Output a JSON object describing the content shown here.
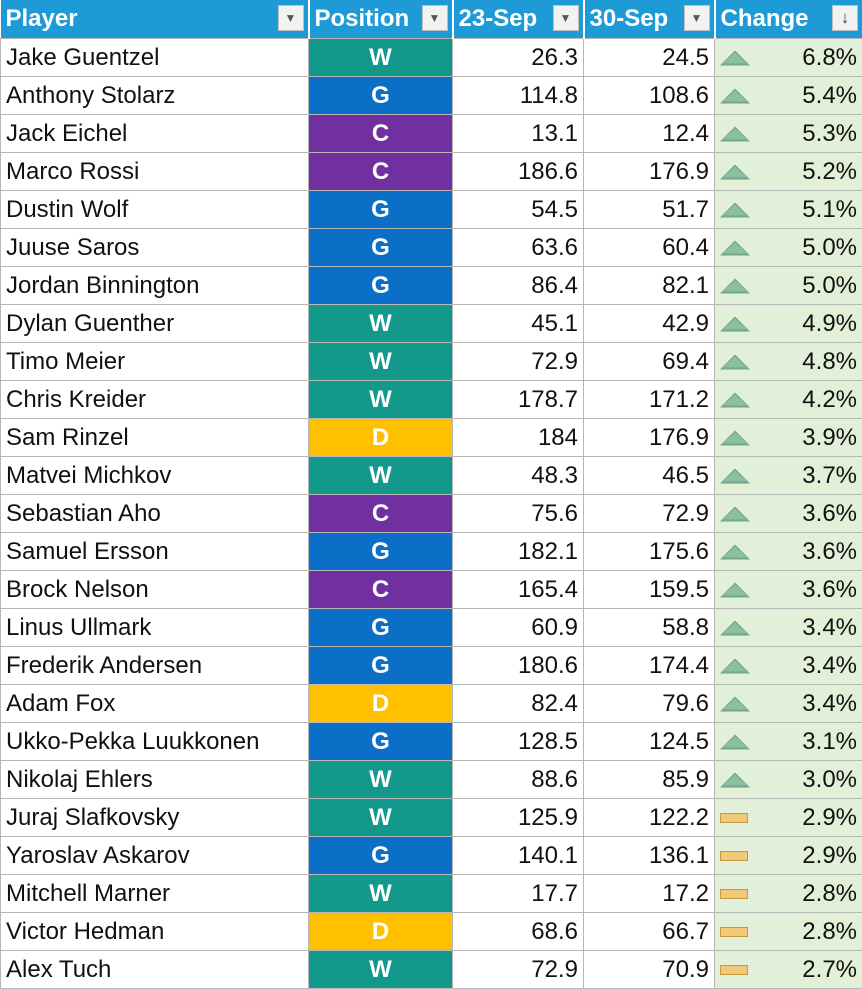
{
  "columns": [
    {
      "label": "Player",
      "sorted": false
    },
    {
      "label": "Position",
      "sorted": false
    },
    {
      "label": "23-Sep",
      "sorted": false
    },
    {
      "label": "30-Sep",
      "sorted": false
    },
    {
      "label": "Change",
      "sorted": true
    }
  ],
  "position_colors": {
    "W": "#13998c",
    "G": "#0c6fc7",
    "C": "#7030a0",
    "D": "#ffc000"
  },
  "rows": [
    {
      "player": "Jake Guentzel",
      "position": "W",
      "sep23": "26.3",
      "sep30": "24.5",
      "change": "6.8%",
      "indicator": "up"
    },
    {
      "player": "Anthony Stolarz",
      "position": "G",
      "sep23": "114.8",
      "sep30": "108.6",
      "change": "5.4%",
      "indicator": "up"
    },
    {
      "player": "Jack Eichel",
      "position": "C",
      "sep23": "13.1",
      "sep30": "12.4",
      "change": "5.3%",
      "indicator": "up"
    },
    {
      "player": "Marco Rossi",
      "position": "C",
      "sep23": "186.6",
      "sep30": "176.9",
      "change": "5.2%",
      "indicator": "up"
    },
    {
      "player": "Dustin Wolf",
      "position": "G",
      "sep23": "54.5",
      "sep30": "51.7",
      "change": "5.1%",
      "indicator": "up"
    },
    {
      "player": "Juuse Saros",
      "position": "G",
      "sep23": "63.6",
      "sep30": "60.4",
      "change": "5.0%",
      "indicator": "up"
    },
    {
      "player": "Jordan Binnington",
      "position": "G",
      "sep23": "86.4",
      "sep30": "82.1",
      "change": "5.0%",
      "indicator": "up"
    },
    {
      "player": "Dylan Guenther",
      "position": "W",
      "sep23": "45.1",
      "sep30": "42.9",
      "change": "4.9%",
      "indicator": "up"
    },
    {
      "player": "Timo Meier",
      "position": "W",
      "sep23": "72.9",
      "sep30": "69.4",
      "change": "4.8%",
      "indicator": "up"
    },
    {
      "player": "Chris Kreider",
      "position": "W",
      "sep23": "178.7",
      "sep30": "171.2",
      "change": "4.2%",
      "indicator": "up"
    },
    {
      "player": "Sam Rinzel",
      "position": "D",
      "sep23": "184",
      "sep30": "176.9",
      "change": "3.9%",
      "indicator": "up"
    },
    {
      "player": "Matvei Michkov",
      "position": "W",
      "sep23": "48.3",
      "sep30": "46.5",
      "change": "3.7%",
      "indicator": "up"
    },
    {
      "player": "Sebastian Aho",
      "position": "C",
      "sep23": "75.6",
      "sep30": "72.9",
      "change": "3.6%",
      "indicator": "up"
    },
    {
      "player": "Samuel Ersson",
      "position": "G",
      "sep23": "182.1",
      "sep30": "175.6",
      "change": "3.6%",
      "indicator": "up"
    },
    {
      "player": "Brock Nelson",
      "position": "C",
      "sep23": "165.4",
      "sep30": "159.5",
      "change": "3.6%",
      "indicator": "up"
    },
    {
      "player": "Linus Ullmark",
      "position": "G",
      "sep23": "60.9",
      "sep30": "58.8",
      "change": "3.4%",
      "indicator": "up"
    },
    {
      "player": "Frederik Andersen",
      "position": "G",
      "sep23": "180.6",
      "sep30": "174.4",
      "change": "3.4%",
      "indicator": "up"
    },
    {
      "player": "Adam Fox",
      "position": "D",
      "sep23": "82.4",
      "sep30": "79.6",
      "change": "3.4%",
      "indicator": "up"
    },
    {
      "player": "Ukko-Pekka Luukkonen",
      "position": "G",
      "sep23": "128.5",
      "sep30": "124.5",
      "change": "3.1%",
      "indicator": "up"
    },
    {
      "player": "Nikolaj Ehlers",
      "position": "W",
      "sep23": "88.6",
      "sep30": "85.9",
      "change": "3.0%",
      "indicator": "up"
    },
    {
      "player": "Juraj Slafkovsky",
      "position": "W",
      "sep23": "125.9",
      "sep30": "122.2",
      "change": "2.9%",
      "indicator": "flat"
    },
    {
      "player": "Yaroslav Askarov",
      "position": "G",
      "sep23": "140.1",
      "sep30": "136.1",
      "change": "2.9%",
      "indicator": "flat"
    },
    {
      "player": "Mitchell Marner",
      "position": "W",
      "sep23": "17.7",
      "sep30": "17.2",
      "change": "2.8%",
      "indicator": "flat"
    },
    {
      "player": "Victor Hedman",
      "position": "D",
      "sep23": "68.6",
      "sep30": "66.7",
      "change": "2.8%",
      "indicator": "flat"
    },
    {
      "player": "Alex Tuch",
      "position": "W",
      "sep23": "72.9",
      "sep30": "70.9",
      "change": "2.7%",
      "indicator": "flat"
    }
  ]
}
